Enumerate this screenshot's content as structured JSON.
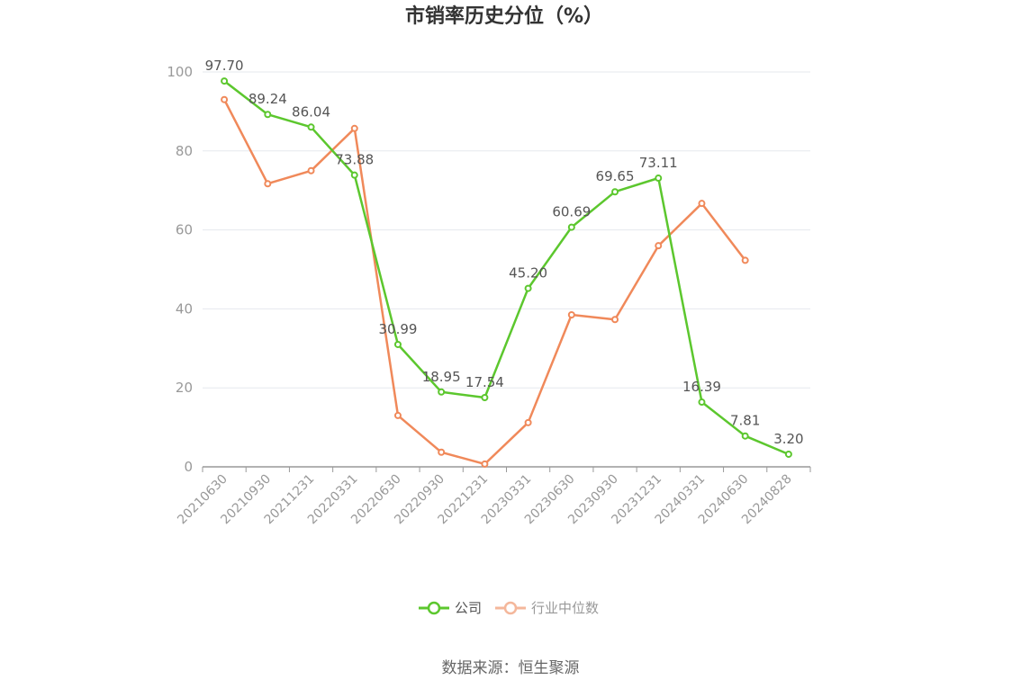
{
  "chart_data": {
    "type": "line",
    "title": "市销率历史分位（%）",
    "x": [
      "20210630",
      "20210930",
      "20211231",
      "20220331",
      "20220630",
      "20220930",
      "20221231",
      "20230331",
      "20230630",
      "20230930",
      "20231231",
      "20240331",
      "20240630",
      "20240828"
    ],
    "ylim": [
      0,
      100
    ],
    "yticks": [
      0,
      20,
      40,
      60,
      80,
      100
    ],
    "grid": true,
    "legend_position": "bottom",
    "series": [
      {
        "name": "公司",
        "color": "#5cc72e",
        "show_labels": true,
        "values": [
          97.7,
          89.24,
          86.04,
          73.88,
          30.99,
          18.95,
          17.54,
          45.2,
          60.69,
          69.65,
          73.11,
          16.39,
          7.81,
          3.2
        ],
        "labels": [
          "97.70",
          "89.24",
          "86.04",
          "73.88",
          "30.99",
          "18.95",
          "17.54",
          "45.20",
          "60.69",
          "69.65",
          "73.11",
          "16.39",
          "7.81",
          "3.20"
        ]
      },
      {
        "name": "行业中位数",
        "color": "#f0895a",
        "show_labels": false,
        "values": [
          93.0,
          71.7,
          75.0,
          85.7,
          13.0,
          3.7,
          0.7,
          11.2,
          38.5,
          37.3,
          56.0,
          66.7,
          52.3,
          null
        ]
      }
    ]
  },
  "source": "数据来源：恒生聚源"
}
